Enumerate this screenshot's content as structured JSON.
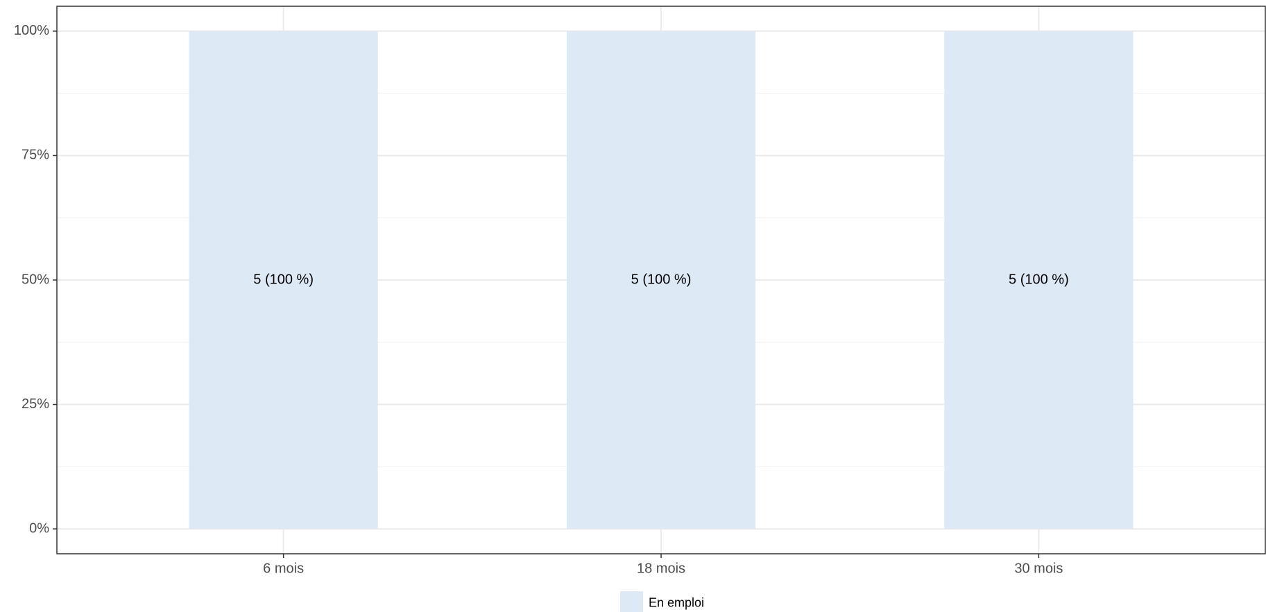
{
  "colors": {
    "bar": "#dde9f5",
    "grid_major": "#ebebeb",
    "grid_minor": "#f3f3f3",
    "axis": "#333333",
    "panel_border": "#333333"
  },
  "chart_data": {
    "type": "bar",
    "stacked": true,
    "categories": [
      "6 mois",
      "18 mois",
      "30 mois"
    ],
    "series": [
      {
        "name": "En emploi",
        "values": [
          1.0,
          1.0,
          1.0
        ],
        "labels": [
          "5 (100 %)",
          "5 (100 %)",
          "5 (100 %)"
        ]
      }
    ],
    "y_ticks": [
      {
        "value": 0,
        "label": "0%"
      },
      {
        "value": 0.25,
        "label": "25%"
      },
      {
        "value": 0.5,
        "label": "50%"
      },
      {
        "value": 0.75,
        "label": "75%"
      },
      {
        "value": 1.0,
        "label": "100%"
      }
    ],
    "ylim": [
      -0.05,
      1.05
    ],
    "grid": true,
    "legend_position": "bottom"
  }
}
